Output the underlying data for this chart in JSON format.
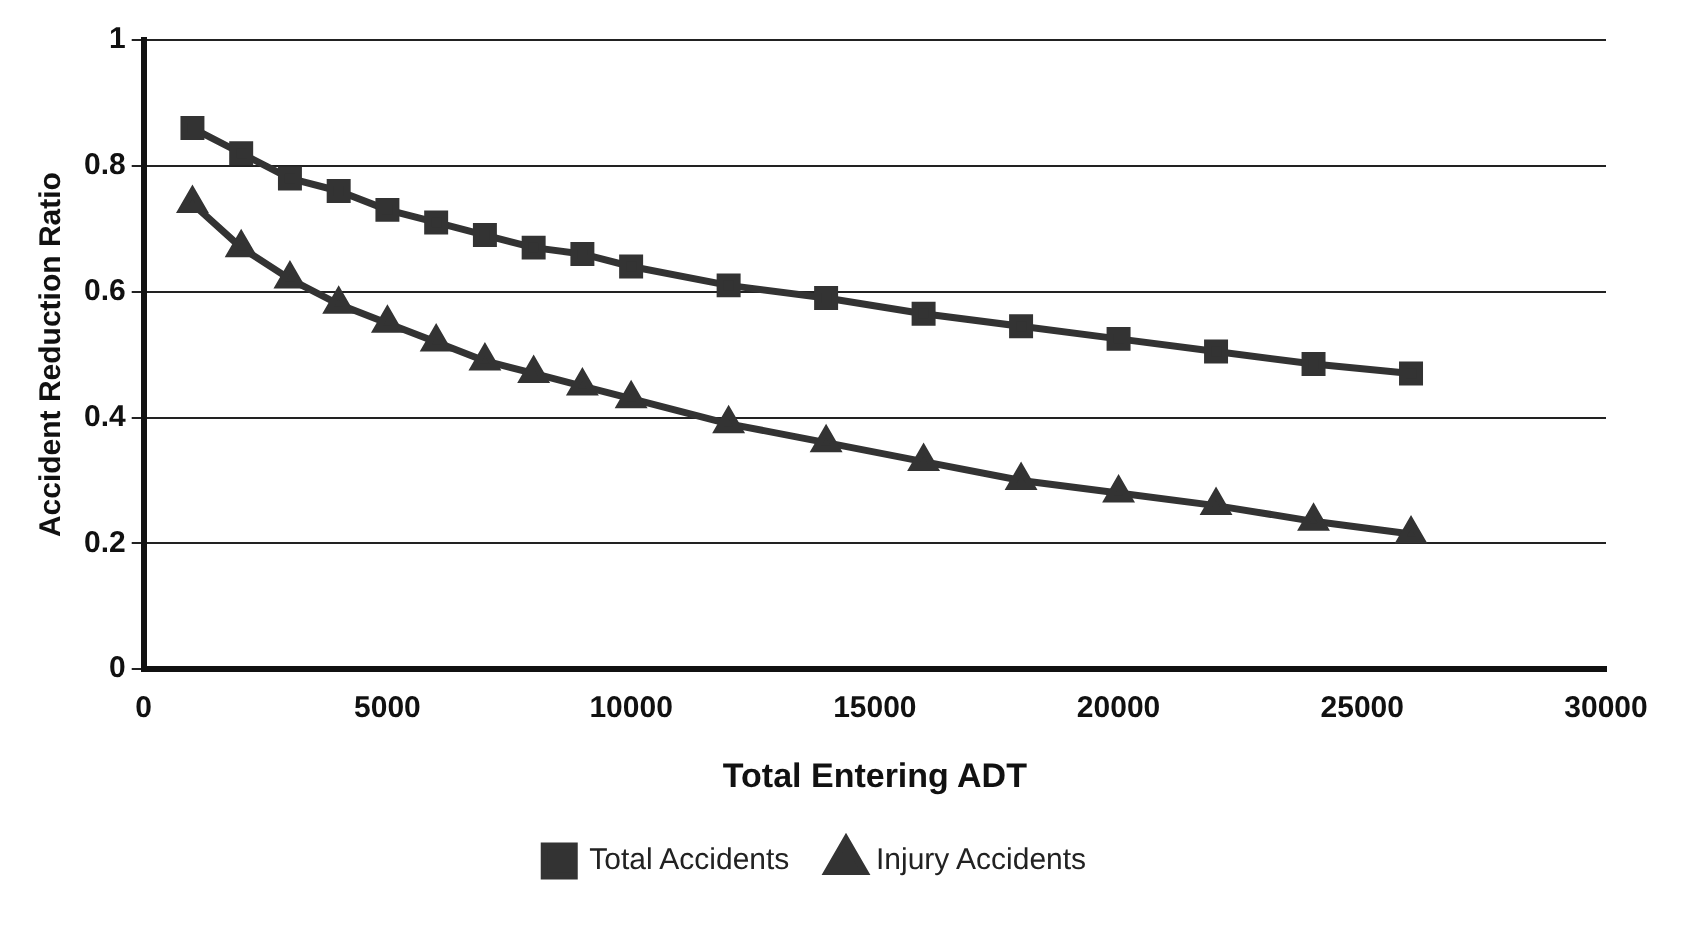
{
  "chart_data": {
    "type": "line",
    "xlabel": "Total Entering ADT",
    "ylabel": "Accident Reduction Ratio",
    "x": [
      1000,
      2000,
      3000,
      4000,
      5000,
      6000,
      7000,
      8000,
      9000,
      10000,
      12000,
      14000,
      16000,
      18000,
      20000,
      22000,
      24000,
      26000
    ],
    "xlim": [
      0,
      30000
    ],
    "xticks": [
      0,
      5000,
      10000,
      15000,
      20000,
      25000,
      30000
    ],
    "ylim": [
      0,
      1
    ],
    "yticks": [
      0,
      0.2,
      0.4,
      0.6,
      0.8,
      1
    ],
    "grid": "y",
    "legend": "bottom",
    "line_style": "solid",
    "series": [
      {
        "name": "Total Accidents",
        "color": "#333333",
        "marker": "square",
        "values": [
          0.86,
          0.82,
          0.78,
          0.76,
          0.73,
          0.71,
          0.69,
          0.67,
          0.66,
          0.64,
          0.61,
          0.59,
          0.565,
          0.545,
          0.525,
          0.505,
          0.485,
          0.47
        ]
      },
      {
        "name": "Injury Accidents",
        "color": "#333333",
        "marker": "triangle",
        "values": [
          0.74,
          0.67,
          0.62,
          0.58,
          0.55,
          0.52,
          0.49,
          0.47,
          0.45,
          0.43,
          0.39,
          0.36,
          0.33,
          0.3,
          0.28,
          0.26,
          0.235,
          0.215
        ]
      }
    ]
  }
}
